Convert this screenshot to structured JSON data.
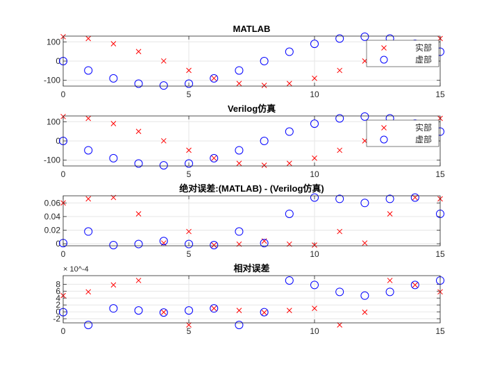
{
  "chart_data": [
    {
      "type": "scatter",
      "title": "MATLAB",
      "xlim": [
        0,
        15
      ],
      "ylim": [
        -130,
        130
      ],
      "xticks": [
        0,
        5,
        10,
        15
      ],
      "yticks": [
        -100,
        0,
        100
      ],
      "xtick_labels": [
        "0",
        "5",
        "10",
        "15"
      ],
      "ytick_labels": [
        "-100",
        "0",
        "100"
      ],
      "grid": true,
      "legend": "top-right",
      "series": [
        {
          "name": "实部",
          "marker": "x",
          "color": "#ff0000",
          "x": [
            0,
            1,
            2,
            3,
            4,
            5,
            6,
            7,
            8,
            9,
            10,
            11,
            12,
            13,
            14,
            15
          ],
          "y": [
            127,
            117.5,
            90.4,
            49.6,
            0.6,
            -48.4,
            -89.2,
            -116.6,
            -126.3,
            -116.6,
            -89.3,
            -48.5,
            0.5,
            49.5,
            90.3,
            117.5
          ]
        },
        {
          "name": "虚部",
          "marker": "o",
          "color": "#0000ff",
          "x": [
            0,
            1,
            2,
            3,
            4,
            5,
            6,
            7,
            8,
            9,
            10,
            11,
            12,
            13,
            14,
            15
          ],
          "y": [
            0,
            -48.6,
            -89.8,
            -117.3,
            -126.9,
            -117.3,
            -89.8,
            -48.6,
            0,
            48.6,
            89.8,
            117.3,
            126.9,
            117.3,
            89.8,
            48.6
          ]
        }
      ]
    },
    {
      "type": "scatter",
      "title": "Verilog仿真",
      "xlim": [
        0,
        15
      ],
      "ylim": [
        -130,
        130
      ],
      "xticks": [
        0,
        5,
        10,
        15
      ],
      "yticks": [
        -100,
        0,
        100
      ],
      "xtick_labels": [
        "0",
        "5",
        "10",
        "15"
      ],
      "ytick_labels": [
        "-100",
        "0",
        "100"
      ],
      "grid": true,
      "legend": "top-right",
      "series": [
        {
          "name": "实部",
          "marker": "x",
          "color": "#ff0000",
          "x": [
            0,
            1,
            2,
            3,
            4,
            5,
            6,
            7,
            8,
            9,
            10,
            11,
            12,
            13,
            14,
            15
          ],
          "y": [
            127,
            117.5,
            90.4,
            49.6,
            0.6,
            -48.4,
            -89.2,
            -116.6,
            -126.3,
            -116.6,
            -89.3,
            -48.5,
            0.5,
            49.5,
            90.3,
            117.5
          ]
        },
        {
          "name": "虚部",
          "marker": "o",
          "color": "#0000ff",
          "x": [
            0,
            1,
            2,
            3,
            4,
            5,
            6,
            7,
            8,
            9,
            10,
            11,
            12,
            13,
            14,
            15
          ],
          "y": [
            0,
            -48.6,
            -89.8,
            -117.3,
            -126.9,
            -117.3,
            -89.8,
            -48.6,
            0,
            48.6,
            89.8,
            117.3,
            126.9,
            117.3,
            89.8,
            48.6
          ]
        }
      ]
    },
    {
      "type": "scatter",
      "title": "绝对误差:(MATLAB) - (Verilog仿真)",
      "xlim": [
        0,
        15
      ],
      "ylim": [
        -0.003,
        0.0705
      ],
      "xticks": [
        0,
        5,
        10,
        15
      ],
      "yticks": [
        0,
        0.02,
        0.04,
        0.06
      ],
      "xtick_labels": [
        "0",
        "5",
        "10",
        "15"
      ],
      "ytick_labels": [
        "0",
        "0.02",
        "0.04",
        "0.06"
      ],
      "grid": true,
      "series": [
        {
          "name": "实部",
          "marker": "x",
          "color": "#ff0000",
          "x": [
            0,
            1,
            2,
            3,
            4,
            5,
            6,
            7,
            8,
            9,
            10,
            11,
            12,
            13,
            14,
            15
          ],
          "y": [
            0.06,
            0.066,
            0.068,
            0.044,
            0.001,
            0.018,
            -0.002,
            -0.0005,
            0.004,
            -0.0005,
            -0.002,
            0.018,
            0.001,
            0.044,
            0.068,
            0.066
          ]
        },
        {
          "name": "虚部",
          "marker": "o",
          "color": "#0000ff",
          "x": [
            0,
            1,
            2,
            3,
            4,
            5,
            6,
            7,
            8,
            9,
            10,
            11,
            12,
            13,
            14,
            15
          ],
          "y": [
            0.001,
            0.018,
            -0.002,
            -0.0005,
            0.004,
            -0.0005,
            -0.002,
            0.018,
            0.001,
            0.044,
            0.068,
            0.066,
            0.06,
            0.066,
            0.068,
            0.044
          ]
        }
      ]
    },
    {
      "type": "scatter",
      "title": "相对误差",
      "xlim": [
        0,
        15
      ],
      "ylim": [
        -3.2,
        10.5
      ],
      "y_multiplier": "× 10^-4",
      "xticks": [
        0,
        5,
        10,
        15
      ],
      "yticks": [
        -2,
        0,
        2,
        4,
        6,
        8
      ],
      "xtick_labels": [
        "0",
        "5",
        "10",
        "15"
      ],
      "ytick_labels": [
        "-2",
        "0",
        "2",
        "4",
        "6",
        "8"
      ],
      "grid": true,
      "series": [
        {
          "name": "实部",
          "marker": "x",
          "color": "#ff0000",
          "x": [
            0,
            1,
            2,
            3,
            4,
            5,
            6,
            7,
            8,
            9,
            10,
            11,
            12,
            13,
            14,
            15
          ],
          "y": [
            4.7,
            5.8,
            7.8,
            9.1,
            -0.1,
            -3.8,
            1.0,
            0.4,
            -0.2,
            0.4,
            1.0,
            -3.8,
            -0.1,
            9.1,
            7.8,
            5.8
          ]
        },
        {
          "name": "虚部",
          "marker": "o",
          "color": "#0000ff",
          "x": [
            0,
            1,
            2,
            3,
            4,
            5,
            6,
            7,
            8,
            9,
            10,
            11,
            12,
            13,
            14,
            15
          ],
          "y": [
            -0.1,
            -3.8,
            1.0,
            0.4,
            -0.2,
            0.4,
            1.0,
            -3.8,
            -0.1,
            9.1,
            7.8,
            5.8,
            4.7,
            5.8,
            7.8,
            9.1
          ]
        }
      ]
    }
  ],
  "axis_color": "#262626",
  "grid_color": "#e6e6e6"
}
